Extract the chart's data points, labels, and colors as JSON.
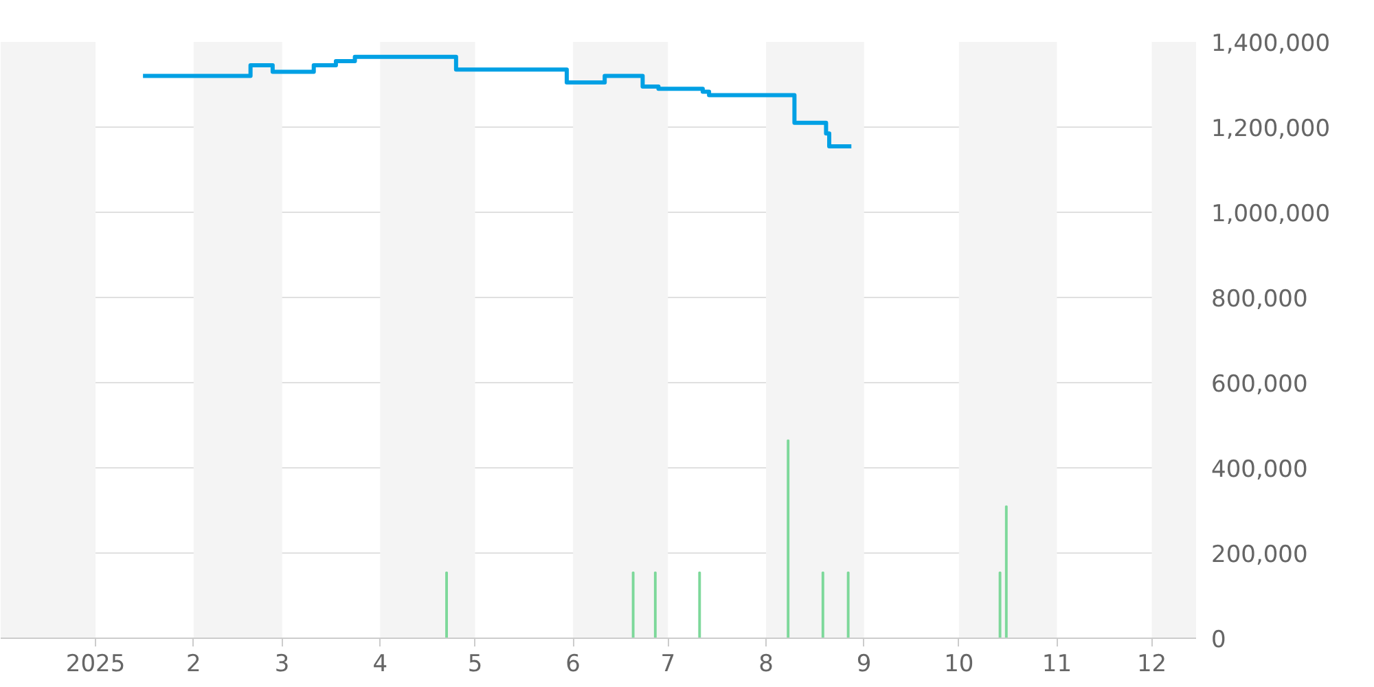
{
  "chart_data": {
    "type": "step",
    "xlim": [
      "2024-12-02",
      "2025-12-15"
    ],
    "xticks": [
      {
        "value": "2025-01-01",
        "label": "2025"
      },
      {
        "value": "2025-02-01",
        "label": "2"
      },
      {
        "value": "2025-03-01",
        "label": "3"
      },
      {
        "value": "2025-04-01",
        "label": "4"
      },
      {
        "value": "2025-05-01",
        "label": "5"
      },
      {
        "value": "2025-06-01",
        "label": "6"
      },
      {
        "value": "2025-07-01",
        "label": "7"
      },
      {
        "value": "2025-08-01",
        "label": "8"
      },
      {
        "value": "2025-09-01",
        "label": "9"
      },
      {
        "value": "2025-10-01",
        "label": "10"
      },
      {
        "value": "2025-11-01",
        "label": "11"
      },
      {
        "value": "2025-12-01",
        "label": "12"
      }
    ],
    "ylim": [
      0,
      1400000
    ],
    "yticks": [
      {
        "value": 0,
        "label": "0"
      },
      {
        "value": 200000,
        "label": "200,000"
      },
      {
        "value": 400000,
        "label": "400,000"
      },
      {
        "value": 600000,
        "label": "600,000"
      },
      {
        "value": 800000,
        "label": "800,000"
      },
      {
        "value": 1000000,
        "label": "1,000,000"
      },
      {
        "value": 1200000,
        "label": "1,200,000"
      },
      {
        "value": 1400000,
        "label": "1,400,000"
      }
    ],
    "grid": "y",
    "bands": [
      {
        "axis": "x",
        "from": "2024-12-02",
        "to": "2025-01-01",
        "color": "#f4f4f4"
      },
      {
        "axis": "x",
        "from": "2025-02-01",
        "to": "2025-03-01",
        "color": "#f4f4f4"
      },
      {
        "axis": "x",
        "from": "2025-04-01",
        "to": "2025-05-01",
        "color": "#f4f4f4"
      },
      {
        "axis": "x",
        "from": "2025-06-01",
        "to": "2025-07-01",
        "color": "#f4f4f4"
      },
      {
        "axis": "x",
        "from": "2025-08-01",
        "to": "2025-09-01",
        "color": "#f4f4f4"
      },
      {
        "axis": "x",
        "from": "2025-10-01",
        "to": "2025-11-01",
        "color": "#f4f4f4"
      },
      {
        "axis": "x",
        "from": "2025-12-01",
        "to": "2025-12-15",
        "color": "#f4f4f4"
      }
    ],
    "series": [
      {
        "type": "bar",
        "color": "#7dd89a",
        "x": [
          "2025-04-22",
          "2025-06-20",
          "2025-06-27",
          "2025-07-11",
          "2025-08-08",
          "2025-08-19",
          "2025-08-27",
          "2025-10-14",
          "2025-10-16"
        ],
        "values": [
          155000,
          155000,
          155000,
          155000,
          465000,
          155000,
          155000,
          155000,
          310000
        ]
      },
      {
        "color": "#00a0e4",
        "x": [
          "2025-01-16",
          "2025-02-19",
          "2025-02-26",
          "2025-03-11",
          "2025-03-18",
          "2025-03-24",
          "2025-04-25",
          "2025-05-30",
          "2025-06-11",
          "2025-06-23",
          "2025-06-28",
          "2025-07-12",
          "2025-07-14",
          "2025-08-10",
          "2025-08-20",
          "2025-08-21",
          "2025-08-28"
        ],
        "values": [
          1320000,
          1345000,
          1330000,
          1345000,
          1355000,
          1365000,
          1335000,
          1305000,
          1320000,
          1295000,
          1290000,
          1283000,
          1275000,
          1210000,
          1185000,
          1155000,
          1155000
        ]
      }
    ]
  }
}
